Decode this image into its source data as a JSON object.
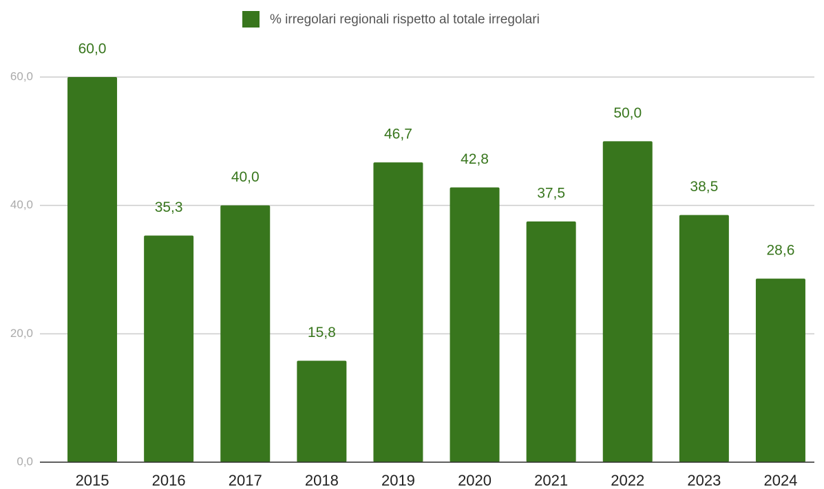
{
  "chart_data": {
    "type": "bar",
    "categories": [
      "2015",
      "2016",
      "2017",
      "2018",
      "2019",
      "2020",
      "2021",
      "2022",
      "2023",
      "2024"
    ],
    "series": [
      {
        "name": "% irregolari regionali rispetto al totale irregolari",
        "color": "#38761d",
        "values": [
          60.0,
          35.3,
          40.0,
          15.8,
          46.7,
          42.8,
          37.5,
          50.0,
          38.5,
          28.6
        ],
        "value_labels": [
          "60,0",
          "35,3",
          "40,0",
          "15,8",
          "46,7",
          "42,8",
          "37,5",
          "50,0",
          "38,5",
          "28,6"
        ]
      }
    ],
    "ylim": [
      0,
      60
    ],
    "yticks": [
      {
        "value": 0,
        "label": "0,0"
      },
      {
        "value": 20,
        "label": "20,0"
      },
      {
        "value": 40,
        "label": "40,0"
      },
      {
        "value": 60,
        "label": "60,0"
      }
    ],
    "grid": true,
    "legend": "top"
  }
}
